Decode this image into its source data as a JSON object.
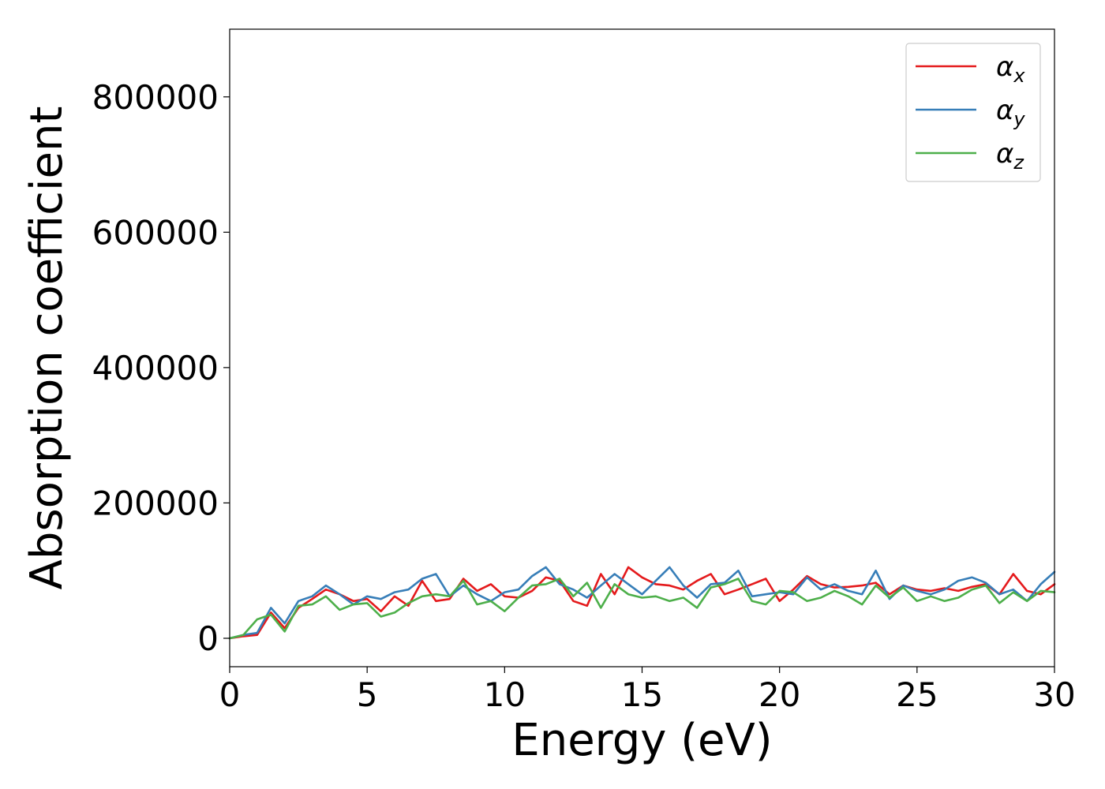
{
  "chart_data": {
    "type": "line",
    "title": "",
    "xlabel": "Energy (eV)",
    "ylabel": "Absorption coefficient",
    "xlim": [
      0,
      30
    ],
    "ylim": [
      -42000,
      900000
    ],
    "xticks": [
      "0",
      "5",
      "10",
      "15",
      "20",
      "25",
      "30"
    ],
    "yticks": [
      "0",
      "200000",
      "400000",
      "600000",
      "800000"
    ],
    "grid": false,
    "legend_position": "top-right",
    "x": [
      0,
      0.5,
      1,
      1.5,
      2,
      2.5,
      3,
      3.5,
      4,
      4.5,
      5,
      5.5,
      6,
      6.5,
      7,
      7.5,
      8,
      8.5,
      9,
      9.5,
      10,
      10.5,
      11,
      11.5,
      12,
      12.5,
      13,
      13.5,
      14,
      14.5,
      15,
      15.5,
      16,
      16.5,
      17,
      17.5,
      18,
      18.5,
      19,
      19.5,
      20,
      20.5,
      21,
      21.5,
      22,
      22.5,
      23,
      23.5,
      24,
      24.5,
      25,
      25.5,
      26,
      26.5,
      27,
      27.5,
      28,
      28.5,
      29,
      29.5,
      30
    ],
    "series": [
      {
        "name": "α",
        "subscript": "x",
        "color": "#e41a1c",
        "values": [
          0,
          3000,
          5000,
          38000,
          15000,
          45000,
          58000,
          72000,
          65000,
          55000,
          58000,
          40000,
          62000,
          48000,
          85000,
          55000,
          58000,
          88000,
          70000,
          80000,
          62000,
          60000,
          70000,
          90000,
          85000,
          55000,
          48000,
          95000,
          65000,
          105000,
          90000,
          80000,
          78000,
          72000,
          85000,
          95000,
          65000,
          72000,
          80000,
          88000,
          55000,
          72000,
          92000,
          80000,
          75000,
          76000,
          78000,
          82000,
          65000,
          78000,
          72000,
          70000,
          74000,
          70000,
          76000,
          80000,
          65000,
          95000,
          70000,
          65000,
          80000
        ]
      },
      {
        "name": "α",
        "subscript": "y",
        "color": "#377eb8",
        "values": [
          0,
          5000,
          8000,
          45000,
          22000,
          55000,
          62000,
          78000,
          65000,
          50000,
          62000,
          58000,
          68000,
          72000,
          88000,
          95000,
          62000,
          78000,
          65000,
          55000,
          68000,
          72000,
          92000,
          105000,
          80000,
          72000,
          60000,
          78000,
          95000,
          80000,
          65000,
          85000,
          105000,
          78000,
          60000,
          80000,
          82000,
          100000,
          62000,
          65000,
          68000,
          65000,
          90000,
          72000,
          80000,
          70000,
          65000,
          100000,
          58000,
          78000,
          70000,
          65000,
          72000,
          85000,
          90000,
          82000,
          65000,
          72000,
          55000,
          80000,
          98000
        ]
      },
      {
        "name": "α",
        "subscript": "z",
        "color": "#4daf4a",
        "values": [
          0,
          5000,
          28000,
          35000,
          10000,
          48000,
          50000,
          62000,
          42000,
          50000,
          52000,
          32000,
          38000,
          52000,
          62000,
          65000,
          62000,
          85000,
          50000,
          55000,
          40000,
          60000,
          78000,
          80000,
          88000,
          62000,
          82000,
          45000,
          80000,
          65000,
          60000,
          62000,
          55000,
          60000,
          45000,
          75000,
          80000,
          88000,
          55000,
          50000,
          70000,
          68000,
          55000,
          60000,
          70000,
          62000,
          50000,
          78000,
          60000,
          75000,
          55000,
          62000,
          55000,
          60000,
          72000,
          78000,
          52000,
          68000,
          55000,
          70000,
          68000
        ]
      }
    ]
  }
}
